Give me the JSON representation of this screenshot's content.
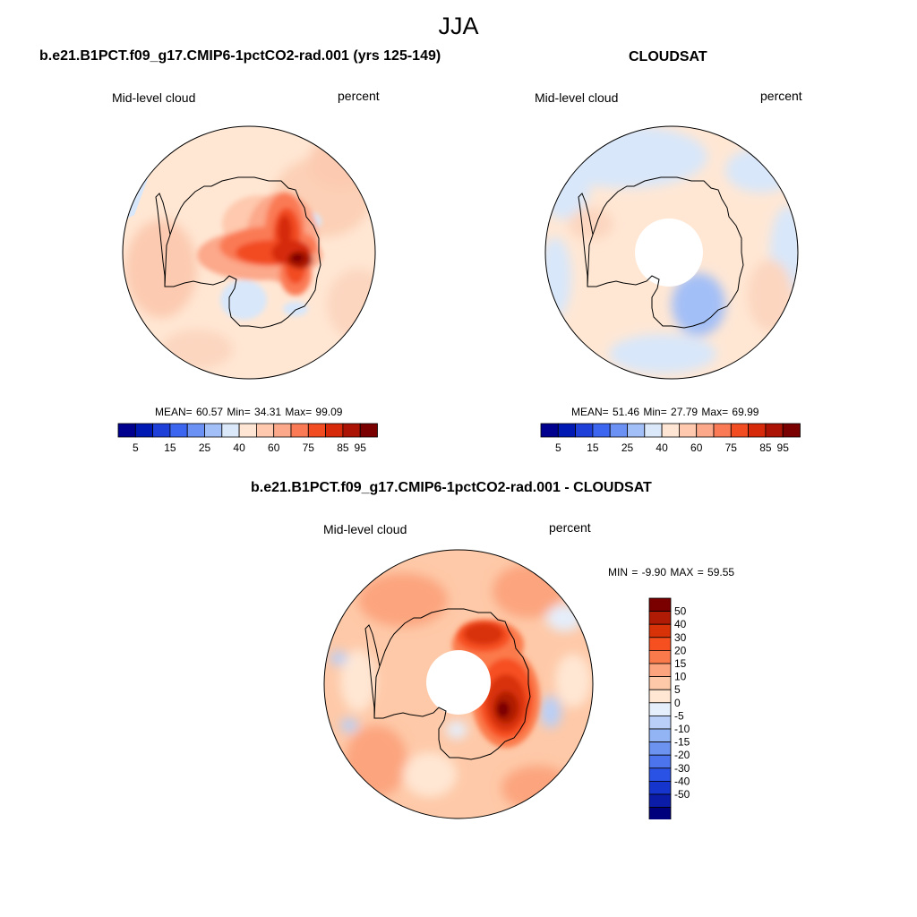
{
  "season": "JJA",
  "panels": {
    "model": {
      "title": "b.e21.B1PCT.f09_g17.CMIP6-1pctCO2-rad.001 (yrs 125-149)",
      "variable": "Mid-level cloud",
      "units": "percent",
      "stats": "MEAN=  60.57  Min=  34.31  Max=  99.09"
    },
    "obs": {
      "title": "CLOUDSAT",
      "variable": "Mid-level cloud",
      "units": "percent",
      "stats": "MEAN=  51.46  Min=  27.79  Max=  69.99"
    },
    "diff": {
      "title": "b.e21.B1PCT.f09_g17.CMIP6-1pctCO2-rad.001 - CLOUDSAT",
      "variable": "Mid-level cloud",
      "units": "percent",
      "stats": "MIN =  -9.90 MAX =  59.55"
    }
  },
  "colorbar_abs": {
    "colors": [
      "#00008f",
      "#0019b3",
      "#1f3fd9",
      "#3d66f0",
      "#6b91f5",
      "#a3bff7",
      "#dbe8f9",
      "#ffe6d4",
      "#fec9ae",
      "#fca88a",
      "#fa7a55",
      "#f24c23",
      "#d62a0a",
      "#ab1405",
      "#7a0000"
    ],
    "tick_labels": [
      "5",
      "15",
      "25",
      "40",
      "60",
      "75",
      "85",
      "95"
    ],
    "tick_after_box": [
      1,
      3,
      5,
      7,
      9,
      11,
      13,
      14
    ]
  },
  "colorbar_diff": {
    "colors": [
      "#7a0000",
      "#b01b05",
      "#d83208",
      "#f65020",
      "#fb7a4c",
      "#fca47e",
      "#fec9a8",
      "#ffe7d4",
      "#e5eefb",
      "#b9cff7",
      "#92b3f4",
      "#6d93f0",
      "#4c74ec",
      "#2a52e4",
      "#1535cc",
      "#0a1ca8",
      "#00007c"
    ],
    "tick_labels": [
      "50",
      "40",
      "30",
      "20",
      "15",
      "10",
      "5",
      "0",
      "-5",
      "-10",
      "-15",
      "-20",
      "-30",
      "-40",
      "-50"
    ]
  }
}
